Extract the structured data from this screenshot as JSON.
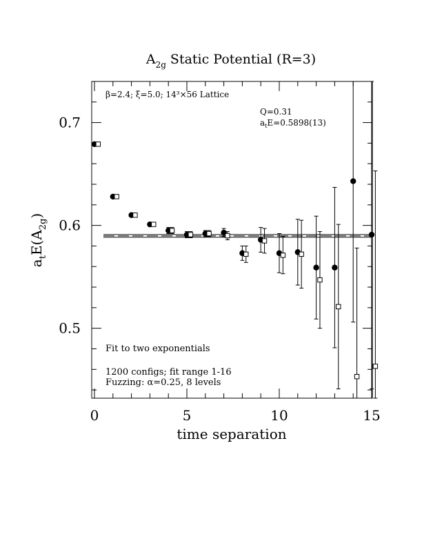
{
  "chart_data": {
    "type": "scatter",
    "title": {
      "main": "A",
      "sub": "2g",
      "rest": " Static Potential (R=3)"
    },
    "ylabel": {
      "main": "a",
      "sub1": "t",
      "mid": "E(A",
      "sub2": "2g",
      "end": ")"
    },
    "xlabel": "time separation",
    "xlim": [
      0,
      15
    ],
    "ylim": [
      0.432,
      0.74
    ],
    "xticks": [
      0,
      5,
      10,
      15
    ],
    "xtick_labels": [
      "0",
      "5",
      "10",
      "15"
    ],
    "yticks": [
      0.5,
      0.6,
      0.7
    ],
    "ytick_labels": [
      "0.5",
      "0.6",
      "0.7"
    ],
    "ylabel_minor_step": 0.02,
    "xlabel_minor_step": 1,
    "grid": false,
    "annotations": {
      "lattice": "β=2.4; ξ=5.0; 14³×56 Lattice",
      "q": "Q=0.31",
      "energy": {
        "main": "a",
        "sub": "t",
        "rest": "E=0.5898(13)"
      },
      "fit": "Fit to two exponentials",
      "configs": "1200 configs; fit range 1-16",
      "fuzzing": "Fuzzing: α=0.25, 8 levels"
    },
    "fit": {
      "value": 0.5898,
      "error": 0.0013,
      "x_range": [
        -0.4,
        15.2
      ]
    },
    "series": [
      {
        "marker": "filled-circle",
        "x": [
          0,
          1,
          2,
          3,
          4,
          5,
          6,
          7,
          8,
          9,
          10,
          11,
          12,
          13,
          14,
          15
        ],
        "y": [
          0.679,
          0.628,
          0.61,
          0.601,
          0.595,
          0.591,
          0.592,
          0.593,
          0.573,
          0.586,
          0.573,
          0.574,
          0.559,
          0.559,
          0.643,
          0.591
        ],
        "err": [
          0.001,
          0.001,
          0.002,
          0.002,
          0.003,
          0.003,
          0.003,
          0.004,
          0.007,
          0.012,
          0.019,
          0.032,
          0.05,
          0.078,
          0.137,
          0.15
        ]
      },
      {
        "marker": "open-square",
        "x": [
          0.2,
          1.2,
          2.2,
          3.2,
          4.2,
          5.2,
          6.2,
          7.2,
          8.2,
          9.2,
          10.2,
          11.2,
          12.2,
          13.2,
          14.2,
          15.2
        ],
        "y": [
          0.679,
          0.628,
          0.61,
          0.601,
          0.595,
          0.591,
          0.592,
          0.59,
          0.572,
          0.585,
          0.571,
          0.572,
          0.547,
          0.521,
          0.453,
          0.463
        ],
        "err": [
          0.001,
          0.001,
          0.002,
          0.002,
          0.003,
          0.003,
          0.003,
          0.004,
          0.008,
          0.012,
          0.018,
          0.033,
          0.047,
          0.08,
          0.125,
          0.19
        ]
      }
    ]
  }
}
